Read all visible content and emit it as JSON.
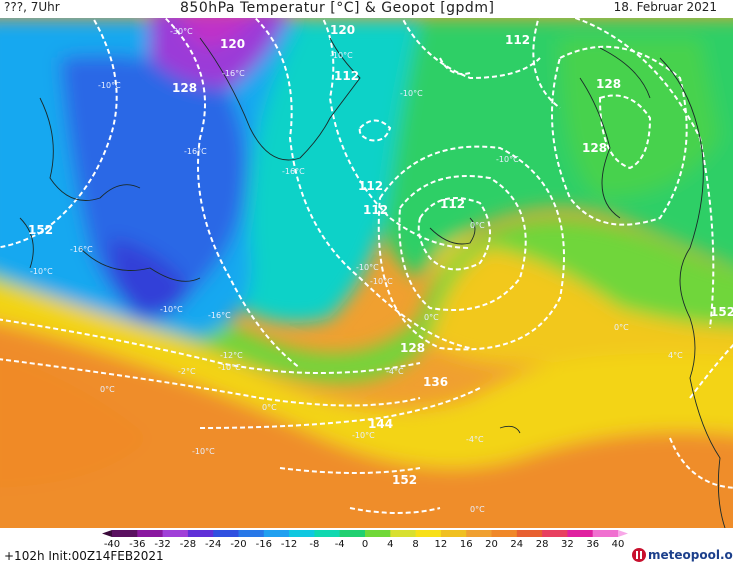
{
  "header": {
    "left": "???, 7Uhr",
    "title": "850hPa Temperatur [°C] & Geopot [gpdm]",
    "date": "18. Februar 2021"
  },
  "geopot_labels": [
    "120",
    "120",
    "112",
    "128",
    "112",
    "112",
    "128",
    "128",
    "112",
    "152",
    "112",
    "128",
    "136",
    "144",
    "152",
    "152"
  ],
  "temp_labels": [
    "-30°C",
    "-10°C",
    "-16°C",
    "-16°C",
    "-10°C",
    "-16°C",
    "-10°C",
    "-10°C",
    "-16°C",
    "-16°C",
    "-10°C",
    "-10°C",
    "-10°C",
    "-10°C",
    "0°C",
    "0°C",
    "0°C",
    "0°C",
    "-4°C",
    "0°C",
    "-12°C",
    "-10°C",
    "-2°C",
    "-10°C",
    "-10°C",
    "-4°C",
    "4°C",
    "0°C"
  ],
  "colorbar": {
    "ticks": [
      "-40",
      "-36",
      "-32",
      "-28",
      "-24",
      "-20",
      "-16",
      "-12",
      "-8",
      "-4",
      "0",
      "4",
      "8",
      "12",
      "16",
      "20",
      "24",
      "28",
      "32",
      "36",
      "40"
    ],
    "colors": [
      "#3a0a3a",
      "#5a1060",
      "#8a18a0",
      "#a040d8",
      "#6030d8",
      "#3050e0",
      "#2878e8",
      "#20a0f0",
      "#10c8e0",
      "#10d8b0",
      "#20d070",
      "#70d838",
      "#d8e030",
      "#f8e018",
      "#f0c020",
      "#f0a030",
      "#f08828",
      "#e86030",
      "#e84060",
      "#e020a0",
      "#f070d0",
      "#f8a8e8"
    ]
  },
  "footer": {
    "run_info": "+102h Init:00Z14FEB2021",
    "logo_text": "meteopool.org"
  }
}
